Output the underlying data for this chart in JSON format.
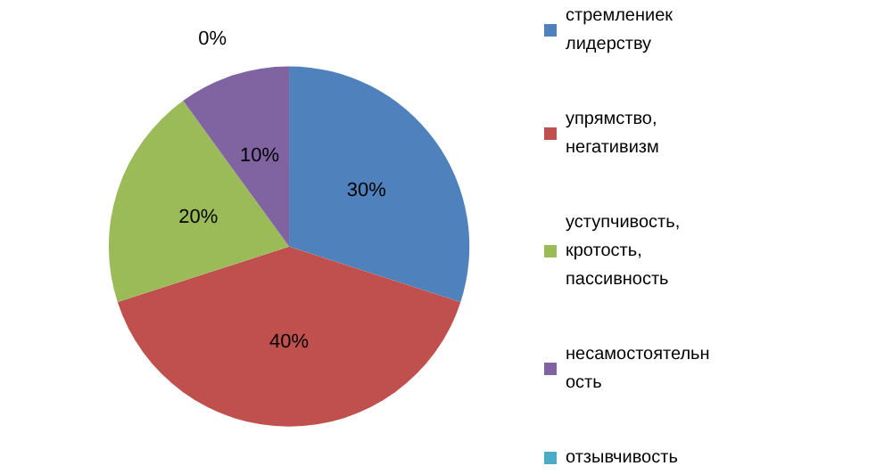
{
  "chart_data": {
    "type": "pie",
    "categories": [
      "стремлениек лидерству",
      "упрямство, негативизм",
      "уступчивость, кротость, пассивность",
      "несамостоятельность",
      "отзывчивость"
    ],
    "values": [
      30,
      40,
      20,
      10,
      0
    ],
    "value_labels": [
      "30%",
      "40%",
      "20%",
      "10%",
      "0%"
    ],
    "colors": [
      "#4f81bd",
      "#c0504d",
      "#9bbb59",
      "#8064a2",
      "#4bacc6"
    ],
    "legend": "right"
  }
}
